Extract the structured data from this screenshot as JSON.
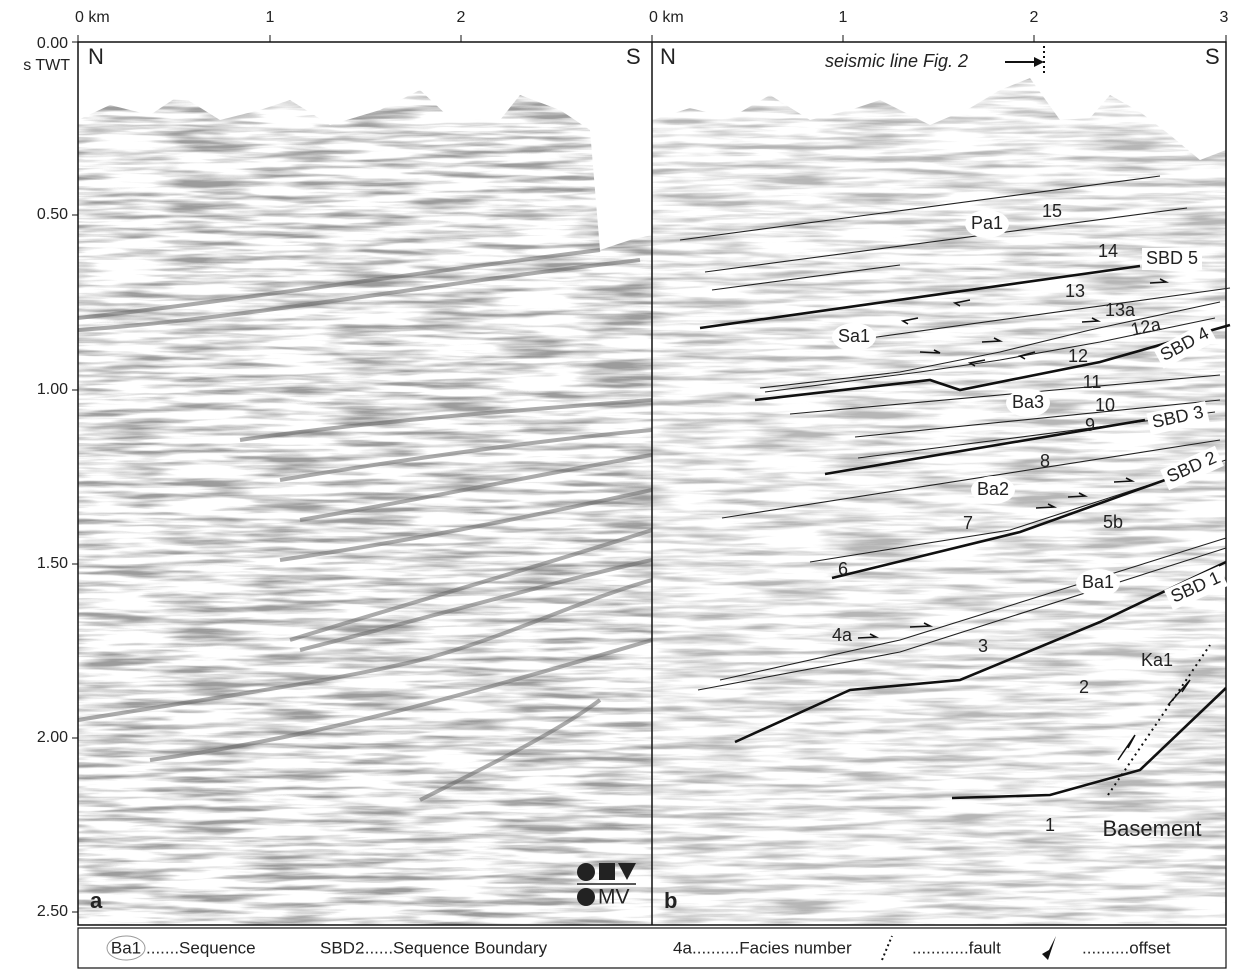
{
  "panels": [
    {
      "label": "a",
      "north": "N",
      "south": "S",
      "km_ticks": [
        "0 km",
        "1",
        "2"
      ]
    },
    {
      "label": "b",
      "north": "N",
      "south": "S",
      "km_ticks": [
        "0 km",
        "1",
        "2",
        "3"
      ],
      "annotation": "seismic line Fig. 2"
    }
  ],
  "time_axis": {
    "unit": "s TWT",
    "ticks": [
      "0.00",
      "0.50",
      "1.00",
      "1.50",
      "2.00",
      "2.50"
    ]
  },
  "logo": "MV",
  "interpretation": {
    "sequences": [
      "Pa1",
      "Sa1",
      "Ba3",
      "Ba2",
      "Ba1",
      "Ka1"
    ],
    "boundaries": [
      "SBD 5",
      "SBD 4",
      "SBD 3",
      "SBD 2",
      "SBD 1"
    ],
    "facies": [
      "15",
      "14",
      "13",
      "13a",
      "12a",
      "12",
      "11",
      "10",
      "9",
      "8",
      "7",
      "5b",
      "6",
      "4a",
      "3",
      "2",
      "1"
    ],
    "basement": "Basement"
  },
  "legend": [
    {
      "symbol": "Ba1",
      "text": ".......Sequence"
    },
    {
      "symbol": "SBD2",
      "text": ".......Sequence Boundary"
    },
    {
      "symbol": "4a",
      "text": "..........Facies number"
    },
    {
      "text": "............fault"
    },
    {
      "text": "..........offset"
    }
  ]
}
